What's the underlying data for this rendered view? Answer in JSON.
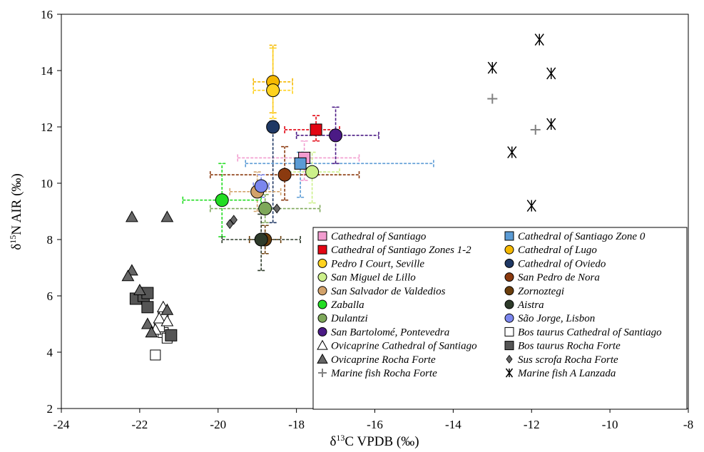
{
  "chart_data": {
    "type": "scatter",
    "title": "",
    "xlabel": "δ13C VPDB (‰)",
    "ylabel": "δ15N AIR (‰)",
    "xlabel_parts": {
      "delta": "δ",
      "sup": "13",
      "rest": "C VPDB (‰)"
    },
    "ylabel_parts": {
      "delta": "δ",
      "sup": "15",
      "rest": "N AIR (‰)"
    },
    "xlim": [
      -24,
      -8
    ],
    "ylim": [
      2,
      16
    ],
    "xticks": [
      -24,
      -22,
      -20,
      -18,
      -16,
      -14,
      -12,
      -10,
      -8
    ],
    "yticks": [
      2,
      4,
      6,
      8,
      10,
      12,
      14,
      16
    ],
    "grid": false,
    "legend_position": "bottom-right",
    "series": [
      {
        "name": "Cathedral of Santiago",
        "marker": "square",
        "color": "#f29ccf",
        "points": [
          [
            -17.8,
            10.9
          ]
        ],
        "err_x": [
          -19.5,
          -16.4
        ],
        "err_y": [
          10.1,
          11.5
        ]
      },
      {
        "name": "Cathedral of Santiago Zone 0",
        "marker": "square",
        "color": "#5b9bd5",
        "points": [
          [
            -17.9,
            10.7
          ]
        ],
        "err_x": [
          -19.3,
          -14.5
        ],
        "err_y": [
          9.5,
          11.1
        ]
      },
      {
        "name": "Cathedral of Santiago Zones 1-2",
        "marker": "square",
        "color": "#e30613",
        "points": [
          [
            -17.5,
            11.9
          ]
        ],
        "err_x": [
          -18.3,
          -16.9
        ],
        "err_y": [
          11.5,
          12.4
        ]
      },
      {
        "name": "Cathedral of Lugo",
        "marker": "circle",
        "color": "#f5b800",
        "points": [
          [
            -18.6,
            13.6
          ]
        ],
        "err_x": [
          -19.1,
          -18.1
        ],
        "err_y": [
          12.5,
          14.9
        ]
      },
      {
        "name": "Pedro I Court, Seville",
        "marker": "circle",
        "color": "#ffd21f",
        "points": [
          [
            -18.6,
            13.3
          ]
        ],
        "err_x": [
          -19.1,
          -18.1
        ],
        "err_y": [
          12.3,
          14.8
        ]
      },
      {
        "name": "Cathedral of Oviedo",
        "marker": "circle",
        "color": "#1f3864",
        "points": [
          [
            -18.6,
            12.0
          ]
        ],
        "err_x": [
          -18.7,
          -18.5
        ],
        "err_y": [
          8.6,
          12.2
        ]
      },
      {
        "name": "San Miguel de Lillo",
        "marker": "circle",
        "color": "#ccf08a",
        "points": [
          [
            -17.6,
            10.4
          ]
        ],
        "err_x": [
          -18.3,
          -16.9
        ],
        "err_y": [
          9.3,
          11.1
        ]
      },
      {
        "name": "San Pedro de Nora",
        "marker": "circle",
        "color": "#8b3a0f",
        "points": [
          [
            -18.3,
            10.3
          ]
        ],
        "err_x": [
          -20.2,
          -16.4
        ],
        "err_y": [
          9.4,
          11.3
        ]
      },
      {
        "name": "San Salvador de Valdedios",
        "marker": "circle",
        "color": "#d2a26b",
        "points": [
          [
            -19.0,
            9.7
          ]
        ],
        "err_x": [
          -19.7,
          -18.4
        ],
        "err_y": [
          9.0,
          10.4
        ]
      },
      {
        "name": "Zornoztegi",
        "marker": "circle",
        "color": "#6b3e0c",
        "points": [
          [
            -18.8,
            8.0
          ]
        ],
        "err_x": [
          -19.2,
          -18.4
        ],
        "err_y": [
          7.5,
          8.5
        ]
      },
      {
        "name": "Zaballa",
        "marker": "circle",
        "color": "#22dd22",
        "points": [
          [
            -19.9,
            9.4
          ]
        ],
        "err_x": [
          -20.9,
          -18.9
        ],
        "err_y": [
          8.1,
          10.7
        ]
      },
      {
        "name": "Aistra",
        "marker": "circle",
        "color": "#2e3b2a",
        "points": [
          [
            -18.9,
            8.0
          ]
        ],
        "err_x": [
          -19.9,
          -17.9
        ],
        "err_y": [
          6.9,
          8.9
        ]
      },
      {
        "name": "Dulantzi",
        "marker": "circle",
        "color": "#7ea85a",
        "points": [
          [
            -18.8,
            9.1
          ]
        ],
        "err_x": [
          -20.2,
          -17.4
        ],
        "err_y": [
          8.6,
          9.6
        ]
      },
      {
        "name": "São Jorge, Lisbon",
        "marker": "circle",
        "color": "#7b86ee",
        "points": [
          [
            -18.9,
            9.9
          ]
        ],
        "err_x": [
          -19.1,
          -18.7
        ],
        "err_y": [
          9.5,
          10.3
        ]
      },
      {
        "name": "San Bartolomé, Pontevedra",
        "marker": "circle",
        "color": "#4b1a85",
        "points": [
          [
            -17.0,
            11.7
          ]
        ],
        "err_x": [
          -18.0,
          -15.9
        ],
        "err_y": [
          10.7,
          12.7
        ]
      },
      {
        "name": "Bos taurus Cathedral of Santiago",
        "marker": "square-open",
        "color": "#ffffff",
        "points": [
          [
            -21.6,
            3.9
          ],
          [
            -21.4,
            4.7
          ],
          [
            -21.3,
            4.5
          ],
          [
            -21.5,
            4.9
          ],
          [
            -21.4,
            5.3
          ]
        ]
      },
      {
        "name": "Ovicaprine Cathedral of Santiago",
        "marker": "triangle-open",
        "color": "#ffffff",
        "points": [
          [
            -21.4,
            5.6
          ],
          [
            -21.5,
            5.2
          ],
          [
            -21.6,
            4.8
          ],
          [
            -21.3,
            5.1
          ]
        ]
      },
      {
        "name": "Bos taurus Rocha Forte",
        "marker": "square",
        "color": "#555555",
        "points": [
          [
            -22.1,
            5.9
          ],
          [
            -21.9,
            6.0
          ],
          [
            -21.8,
            6.1
          ],
          [
            -21.8,
            5.6
          ],
          [
            -21.2,
            4.6
          ]
        ]
      },
      {
        "name": "Ovicaprine Rocha Forte",
        "marker": "triangle",
        "color": "#666666",
        "points": [
          [
            -22.2,
            8.8
          ],
          [
            -21.3,
            8.8
          ],
          [
            -22.2,
            6.9
          ],
          [
            -22.3,
            6.7
          ],
          [
            -22.0,
            6.2
          ],
          [
            -21.8,
            5.0
          ],
          [
            -21.7,
            4.7
          ],
          [
            -21.3,
            5.5
          ]
        ]
      },
      {
        "name": "Sus scrofa Rocha Forte",
        "marker": "diamond",
        "color": "#666666",
        "points": [
          [
            -19.6,
            8.7
          ],
          [
            -19.7,
            8.55
          ],
          [
            -18.5,
            9.1
          ]
        ]
      },
      {
        "name": "Marine fish Rocha Forte",
        "marker": "plus",
        "color": "#808080",
        "points": [
          [
            -13.0,
            13.0
          ],
          [
            -11.9,
            11.9
          ]
        ]
      },
      {
        "name": "Marine fish A Lanzada",
        "marker": "star",
        "color": "#000000",
        "points": [
          [
            -11.8,
            15.1
          ],
          [
            -13.0,
            14.1
          ],
          [
            -11.5,
            13.9
          ],
          [
            -11.5,
            12.1
          ],
          [
            -12.5,
            11.1
          ],
          [
            -12.0,
            9.2
          ]
        ]
      }
    ]
  }
}
